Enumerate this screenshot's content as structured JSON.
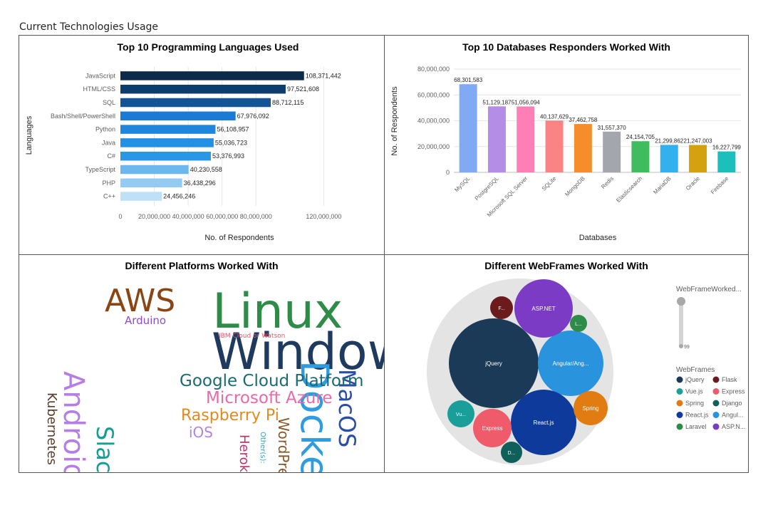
{
  "page": {
    "title": "Current Technologies Usage"
  },
  "chart_data": [
    {
      "type": "bar",
      "orientation": "horizontal",
      "title": "Top 10 Programming Languages Used",
      "xlabel": "No. of Respondents",
      "ylabel": "Languages",
      "categories": [
        "JavaScript",
        "HTML/CSS",
        "SQL",
        "Bash/Shell/PowerShell",
        "Python",
        "Java",
        "C#",
        "TypeScript",
        "PHP",
        "C++"
      ],
      "values": [
        108371442,
        97521608,
        88712115,
        67976092,
        56108957,
        55036723,
        53376993,
        40230558,
        36438296,
        24456246
      ],
      "value_labels": [
        "108,371,442",
        "97,521,608",
        "88,712,115",
        "67,976,092",
        "56,108,957",
        "55,036,723",
        "53,376,993",
        "40,230,558",
        "36,438,296",
        "24,456,246"
      ],
      "colors": [
        "#0e2a4a",
        "#0d3d6e",
        "#125496",
        "#1a7ad4",
        "#1f86dd",
        "#2290e3",
        "#2a96e6",
        "#6cb8ee",
        "#94cbf2",
        "#bfe0f7"
      ],
      "x_ticks": [
        0,
        20000000,
        40000000,
        60000000,
        80000000,
        120000000
      ],
      "x_tick_labels": [
        "0",
        "20,000,000",
        "40,000,000",
        "60,000,000",
        "80,000,000",
        "120,000,000"
      ],
      "xlim": [
        0,
        140000000
      ],
      "grid": true
    },
    {
      "type": "bar",
      "title": "Top 10 Databases Responders Worked With",
      "xlabel": "Databases",
      "ylabel": "No. of Respondents",
      "categories": [
        "MySQL",
        "PostgreSQL",
        "Microsoft SQL Server",
        "SQLite",
        "MongoDB",
        "Redis",
        "Elasticsearch",
        "MariaDB",
        "Oracle",
        "Firebase"
      ],
      "values": [
        68301583,
        51129187,
        51056094,
        40137629,
        37462758,
        31557370,
        24154705,
        21299862,
        21247003,
        16227799
      ],
      "value_labels": [
        "68,301,583",
        "51,129,187",
        "51,056,094",
        "40,137,629",
        "37,462,758",
        "31,557,370",
        "24,154,705",
        "21,299,862",
        "21,247,003",
        "16,227,799"
      ],
      "colors": [
        "#80aaf3",
        "#b48de6",
        "#ff7eb6",
        "#fa8484",
        "#f58d2a",
        "#a3a6ad",
        "#3fbd5e",
        "#33b1ee",
        "#d4a20e",
        "#1cbfbc"
      ],
      "y_ticks": [
        0,
        20000000,
        40000000,
        60000000,
        80000000
      ],
      "y_tick_labels": [
        "0",
        "20,000,000",
        "40,000,000",
        "60,000,000",
        "80,000,000"
      ],
      "ylim": [
        0,
        80000000
      ],
      "grid": true
    }
  ],
  "wordcloud": {
    "title": "Different Platforms Worked With",
    "words": [
      {
        "text": "Windows",
        "color": "#1e3a5f"
      },
      {
        "text": "Linux",
        "color": "#2e8b48"
      },
      {
        "text": "Docker",
        "color": "#2d9ce0"
      },
      {
        "text": "AWS",
        "color": "#8b4513"
      },
      {
        "text": "Android",
        "color": "#b57ee4"
      },
      {
        "text": "MacOS",
        "color": "#2a4da8"
      },
      {
        "text": "Slack",
        "color": "#159e94"
      },
      {
        "text": "Google Cloud Platform",
        "color": "#1a6b73"
      },
      {
        "text": "Microsoft Azure",
        "color": "#e86aa8"
      },
      {
        "text": "Raspberry Pi",
        "color": "#e08a1e"
      },
      {
        "text": "WordPress",
        "color": "#8b5a2b"
      },
      {
        "text": "Kubernetes",
        "color": "#5a3a2a"
      },
      {
        "text": "Heroku",
        "color": "#c0306e"
      },
      {
        "text": "iOS",
        "color": "#b085e0"
      },
      {
        "text": "Arduino",
        "color": "#8e4bd0"
      },
      {
        "text": "IBM Cloud or Watson",
        "color": "#e8556a"
      },
      {
        "text": "Other(s):",
        "color": "#3aa3b8"
      }
    ]
  },
  "bubble": {
    "title": "Different WebFrames Worked With",
    "slicer": {
      "title": "WebFrameWorked...",
      "min_label": "99"
    },
    "legend": {
      "title": "WebFrames",
      "items": [
        {
          "label": "jQuery",
          "color": "#1b3a57"
        },
        {
          "label": "Flask",
          "color": "#6b1b1b"
        },
        {
          "label": "Vue.js",
          "color": "#1a9e9a"
        },
        {
          "label": "Express",
          "color": "#ef5b6a"
        },
        {
          "label": "Spring",
          "color": "#e07c12"
        },
        {
          "label": "Django",
          "color": "#0f5f5a"
        },
        {
          "label": "React.js",
          "color": "#0e3a9c"
        },
        {
          "label": "Angul...",
          "color": "#2a93dd"
        },
        {
          "label": "Laravel",
          "color": "#2e8b48"
        },
        {
          "label": "ASP.N...",
          "color": "#7b3bc4"
        }
      ]
    },
    "bubbles": [
      {
        "label": "jQuery",
        "color": "#1b3a57"
      },
      {
        "label": "Angular/Ang...",
        "color": "#2a93dd"
      },
      {
        "label": "React.js",
        "color": "#0e3a9c"
      },
      {
        "label": "ASP.NET",
        "color": "#7b3bc4"
      },
      {
        "label": "Express",
        "color": "#ef5b6a"
      },
      {
        "label": "Spring",
        "color": "#e07c12"
      },
      {
        "label": "Vu...",
        "color": "#1a9e9a"
      },
      {
        "label": "D...",
        "color": "#0f5f5a"
      },
      {
        "label": "F...",
        "color": "#6b1b1b"
      },
      {
        "label": "L...",
        "color": "#2e8b48"
      }
    ]
  }
}
